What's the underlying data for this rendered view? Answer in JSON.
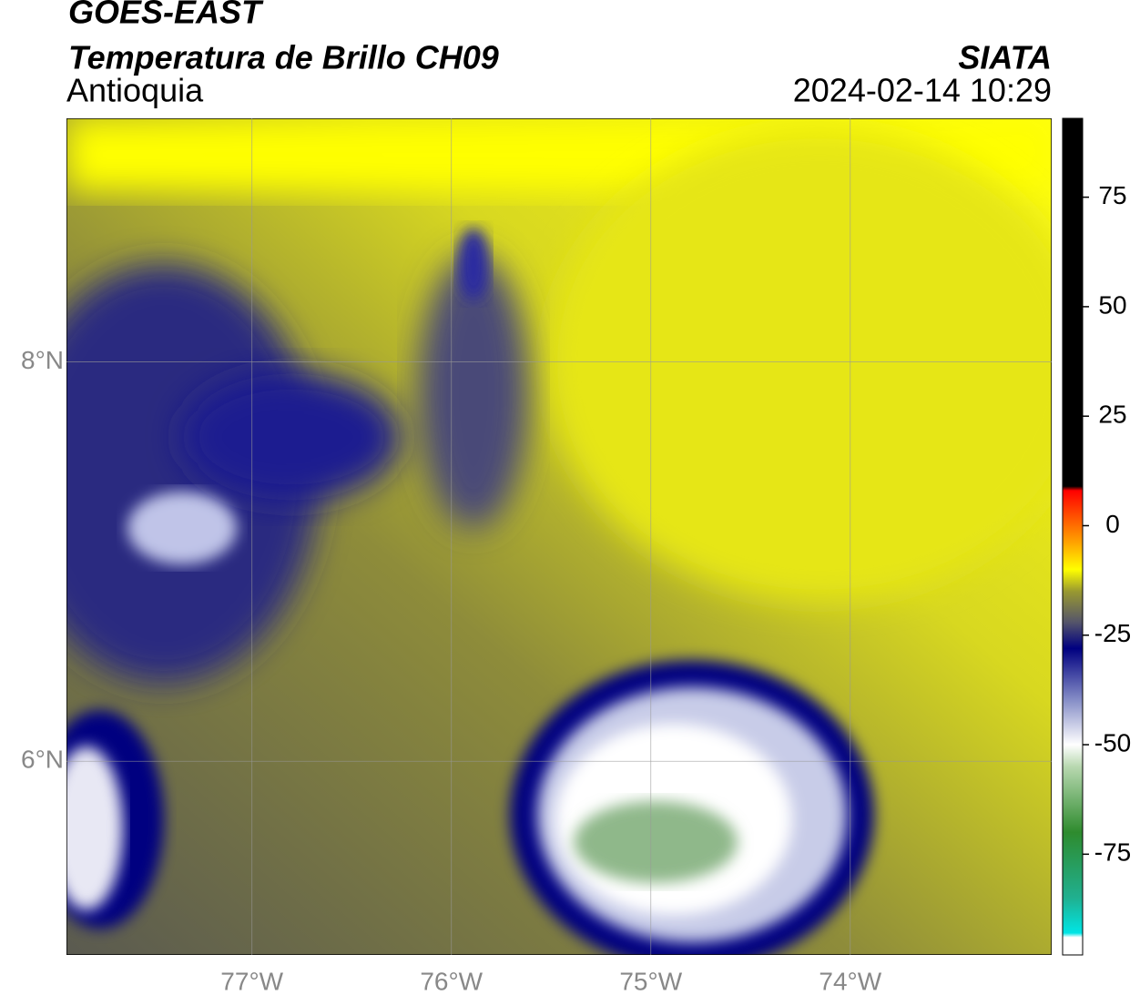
{
  "header": {
    "title": "GOES-EAST",
    "subtitle": "Temperatura de Brillo CH09",
    "region": "Antioquia",
    "source": "SIATA",
    "timestamp": "2024-02-14 10:29"
  },
  "map": {
    "lonlim": [
      -77.93,
      -72.99
    ],
    "latlim": [
      5.03,
      9.22
    ],
    "lon_ticks": [
      {
        "value": -77,
        "label": "77°W"
      },
      {
        "value": -76,
        "label": "76°W"
      },
      {
        "value": -75,
        "label": "75°W"
      },
      {
        "value": -74,
        "label": "74°W"
      }
    ],
    "lat_ticks": [
      {
        "value": 6,
        "label": "6°N"
      },
      {
        "value": 8,
        "label": "8°N"
      }
    ],
    "grid": true
  },
  "colorbar": {
    "lim": [
      -98,
      93
    ],
    "ticks": [
      -75,
      -50,
      -25,
      0,
      25,
      50,
      75
    ],
    "colormap": [
      {
        "value": -98,
        "color": "#ffffff"
      },
      {
        "value": -94,
        "color": "#ffffff"
      },
      {
        "value": -93,
        "color": "#00e5e5"
      },
      {
        "value": -85,
        "color": "#20b090"
      },
      {
        "value": -70,
        "color": "#2e8b2e"
      },
      {
        "value": -55,
        "color": "#b8d8b0"
      },
      {
        "value": -50,
        "color": "#ffffff"
      },
      {
        "value": -40,
        "color": "#8890c8"
      },
      {
        "value": -28,
        "color": "#000080"
      },
      {
        "value": -22,
        "color": "#55556a"
      },
      {
        "value": -15,
        "color": "#999930"
      },
      {
        "value": -10,
        "color": "#ffff00"
      },
      {
        "value": -4,
        "color": "#ffa500"
      },
      {
        "value": 8,
        "color": "#ff0000"
      },
      {
        "value": 9,
        "color": "#000000"
      },
      {
        "value": 93,
        "color": "#000000"
      }
    ]
  }
}
